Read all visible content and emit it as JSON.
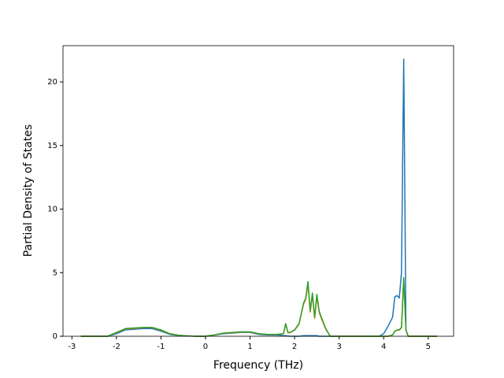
{
  "chart_data": {
    "type": "line",
    "xlabel": "Frequency (THz)",
    "ylabel": "Partial Density of States",
    "x": [
      -2.8,
      -2.6,
      -2.4,
      -2.2,
      -2.0,
      -1.8,
      -1.6,
      -1.4,
      -1.2,
      -1.0,
      -0.8,
      -0.6,
      -0.4,
      -0.2,
      0,
      0.2,
      0.4,
      0.6,
      0.8,
      1.0,
      1.2,
      1.4,
      1.6,
      1.75,
      1.8,
      1.85,
      1.9,
      2.0,
      2.1,
      2.2,
      2.25,
      2.3,
      2.35,
      2.4,
      2.45,
      2.5,
      2.55,
      2.6,
      2.7,
      2.8,
      3.0,
      3.5,
      3.9,
      4.0,
      4.1,
      4.2,
      4.25,
      4.3,
      4.35,
      4.4,
      4.45,
      4.5,
      4.55,
      4.6,
      5.0,
      5.2
    ],
    "series": [
      {
        "color": "#1f77b4",
        "values": [
          0,
          0,
          0,
          0,
          0.2,
          0.5,
          0.55,
          0.6,
          0.6,
          0.4,
          0.15,
          0.05,
          0.02,
          0,
          0,
          0.1,
          0.2,
          0.25,
          0.3,
          0.3,
          0.15,
          0.1,
          0.1,
          0.05,
          0.05,
          0.02,
          0,
          0,
          0,
          0.05,
          0.05,
          0.05,
          0.05,
          0.05,
          0.05,
          0.05,
          0,
          0,
          0,
          0,
          0,
          0,
          0,
          0.2,
          0.8,
          1.5,
          3.1,
          3.2,
          3.0,
          5,
          21.8,
          0.5,
          0,
          0,
          0,
          0
        ]
      },
      {
        "color": "#ff7f0e",
        "values": [
          0,
          0,
          0,
          0,
          0.28,
          0.58,
          0.62,
          0.68,
          0.68,
          0.48,
          0.19,
          0.07,
          0.03,
          0,
          0,
          0.1,
          0.24,
          0.28,
          0.33,
          0.33,
          0.19,
          0.14,
          0.14,
          0.19,
          0.95,
          0.28,
          0.28,
          0.48,
          0.95,
          2.5,
          2.9,
          4.1,
          1.9,
          3.2,
          1.4,
          3.1,
          1.9,
          1.4,
          0.55,
          0,
          0,
          0,
          0,
          0,
          0,
          0.1,
          0.38,
          0.48,
          0.48,
          0.66,
          4.4,
          0.45,
          0,
          0,
          0,
          0
        ]
      },
      {
        "color": "#2ca02c",
        "values": [
          0,
          0,
          0,
          0,
          0.3,
          0.6,
          0.65,
          0.7,
          0.7,
          0.5,
          0.2,
          0.08,
          0.03,
          0,
          0,
          0.1,
          0.25,
          0.3,
          0.35,
          0.35,
          0.2,
          0.15,
          0.15,
          0.2,
          1.0,
          0.3,
          0.3,
          0.5,
          1.0,
          2.6,
          3.0,
          4.3,
          2.0,
          3.4,
          1.5,
          3.3,
          2.0,
          1.5,
          0.6,
          0,
          0,
          0,
          0,
          0,
          0,
          0.1,
          0.4,
          0.5,
          0.5,
          0.7,
          4.6,
          0.5,
          0,
          0,
          0,
          0
        ]
      }
    ],
    "xlim": [
      -3.2,
      5.57
    ],
    "ylim": [
      0,
      22.85
    ],
    "xticks": [
      -3,
      -2,
      -1,
      0,
      1,
      2,
      3,
      4,
      5
    ],
    "yticks": [
      0,
      5,
      10,
      15,
      20
    ]
  }
}
